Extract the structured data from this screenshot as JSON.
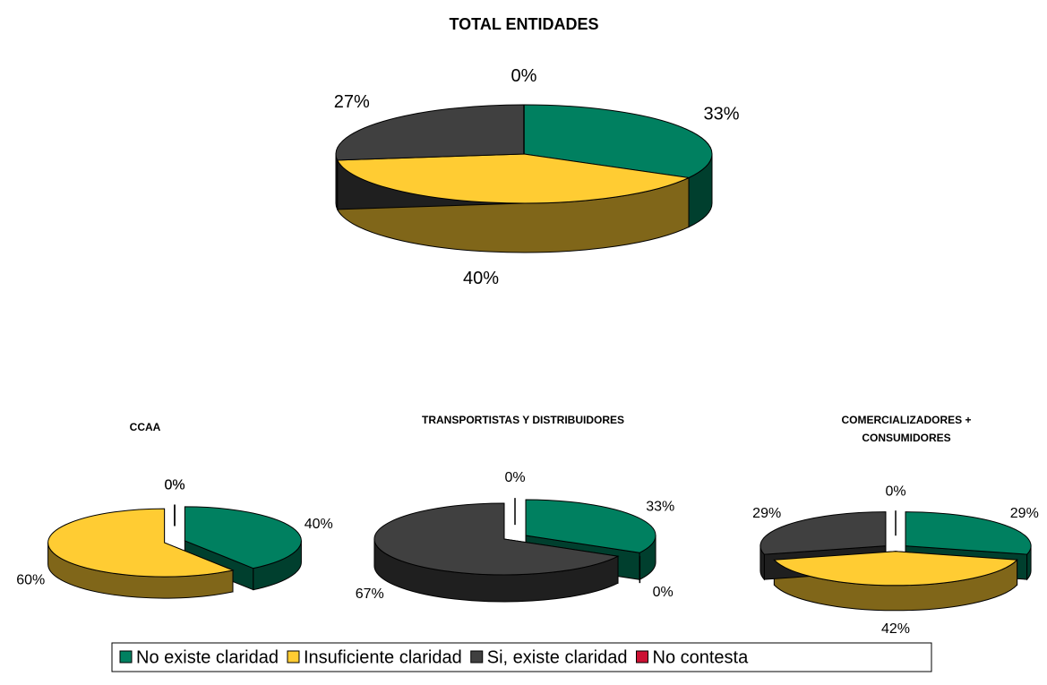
{
  "legend": {
    "labels": [
      "No existe claridad",
      "Insuficiente claridad",
      "Si, existe claridad",
      "No contesta"
    ],
    "colors": [
      "#008060",
      "#FFCC33",
      "#404040",
      "#CC1133"
    ],
    "side_colors": [
      "#003f2e",
      "#806619",
      "#1f1f1f",
      "#661020"
    ]
  },
  "chart_data": [
    {
      "type": "pie",
      "title": "TOTAL ENTIDADES",
      "values": [
        33,
        40,
        27,
        0
      ],
      "value_labels": [
        "33%",
        "40%",
        "27%",
        "0%"
      ]
    },
    {
      "type": "pie",
      "title": "CCAA",
      "values": [
        40,
        60,
        0,
        0
      ],
      "value_labels": [
        "40%",
        "60%",
        "0%",
        "0%"
      ]
    },
    {
      "type": "pie",
      "title": "TRANSPORTISTAS Y DISTRIBUIDORES",
      "values": [
        33,
        0,
        67,
        0
      ],
      "value_labels": [
        "33%",
        "0%",
        "67%",
        "0%"
      ]
    },
    {
      "type": "pie",
      "title": "COMERCIALIZADORES + CONSUMIDORES",
      "values": [
        29,
        42,
        29,
        0
      ],
      "value_labels": [
        "29%",
        "42%",
        "29%",
        "0%"
      ]
    }
  ]
}
